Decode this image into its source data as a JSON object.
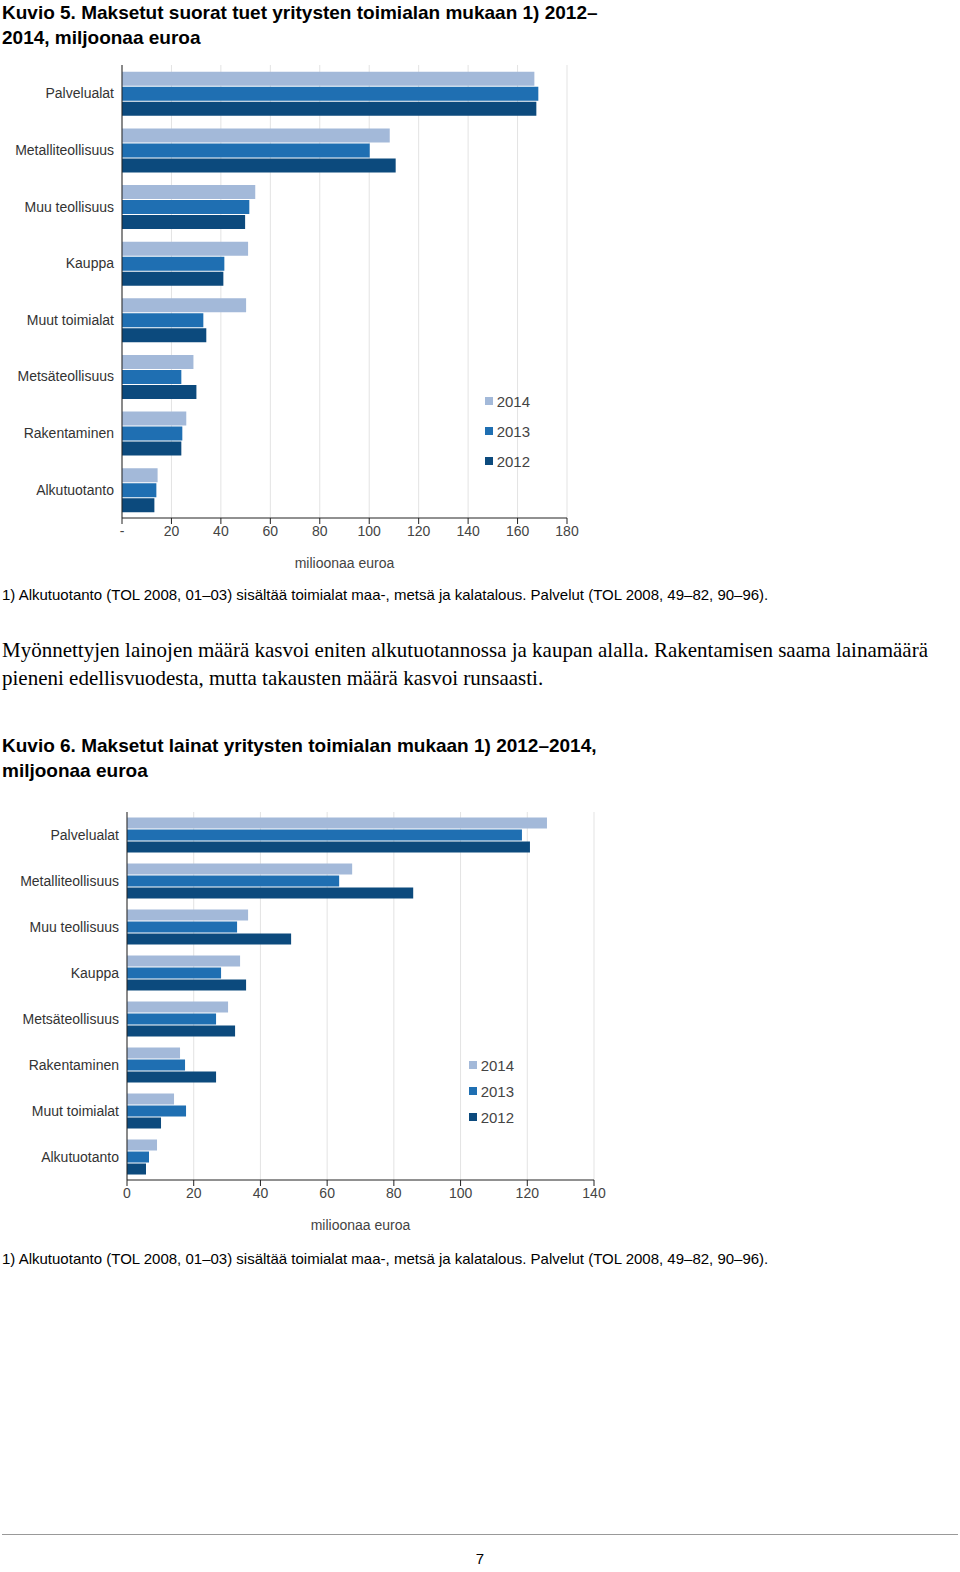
{
  "chart_data": [
    {
      "type": "bar",
      "title": "Kuvio 5. Maksetut suorat tuet yritysten toimialan mukaan 1) 2012–2014, miljoonaa euroa",
      "orientation": "horizontal",
      "xlabel": "miljoonaa euroa",
      "categories": [
        "Palvelualat",
        "Metalliteollisuus",
        "Muu teollisuus",
        "Kauppa",
        "Muut toimialat",
        "Metsäteollisuus",
        "Rakentaminen",
        "Alkutuotanto"
      ],
      "series": [
        {
          "name": "2014",
          "color": "#a3b9d9",
          "values": [
            166.8,
            108.3,
            53.9,
            51.0,
            50.2,
            28.9,
            26.0,
            14.4
          ]
        },
        {
          "name": "2013",
          "color": "#1f6fb2",
          "values": [
            168.4,
            100.2,
            51.5,
            41.4,
            32.9,
            24.0,
            24.4,
            13.9
          ]
        },
        {
          "name": "2012",
          "color": "#0c4a7d",
          "values": [
            167.6,
            110.7,
            49.8,
            41.0,
            34.1,
            30.1,
            24.0,
            13.1
          ]
        }
      ],
      "xlim": [
        0,
        180
      ],
      "xticks": [
        {
          "value": 0,
          "label": "-"
        },
        20,
        40,
        60,
        80,
        100,
        120,
        140,
        160,
        180
      ],
      "grid": true,
      "legend": "lower right",
      "annotations": [
        "1) Alkutuotanto (TOL 2008, 01–03) sisältää toimialat maa-, metsä ja kalatalous. Palvelut (TOL 2008, 49–82, 90–96)."
      ]
    },
    {
      "type": "bar",
      "title": "Kuvio 6. Maksetut lainat yritysten toimialan mukaan 1) 2012–2014, miljoonaa euroa",
      "orientation": "horizontal",
      "xlabel": "miljoonaa euroa",
      "categories": [
        "Palvelualat",
        "Metalliteollisuus",
        "Muu teollisuus",
        "Kauppa",
        "Metsäteollisuus",
        "Rakentaminen",
        "Muut toimialat",
        "Alkutuotanto"
      ],
      "series": [
        {
          "name": "2014",
          "color": "#a3b9d9",
          "values": [
            125.9,
            67.5,
            36.3,
            33.9,
            30.3,
            15.9,
            14.1,
            9.0
          ]
        },
        {
          "name": "2013",
          "color": "#1f6fb2",
          "values": [
            118.4,
            63.6,
            33.0,
            28.2,
            26.7,
            17.4,
            17.7,
            6.6
          ]
        },
        {
          "name": "2012",
          "color": "#0c4a7d",
          "values": [
            120.8,
            85.8,
            49.2,
            35.7,
            32.4,
            26.7,
            10.2,
            5.7
          ]
        }
      ],
      "xlim": [
        0,
        140
      ],
      "xticks": [
        0,
        20,
        40,
        60,
        80,
        100,
        120,
        140
      ],
      "grid": true,
      "legend": "lower right",
      "annotations": [
        "1) Alkutuotanto (TOL 2008, 01–03) sisältää toimialat maa-, metsä ja kalatalous. Palvelut (TOL 2008, 49–82, 90–96)."
      ]
    }
  ],
  "paragraph": "Myönnettyjen lainojen määrä kasvoi eniten alkutuotannossa ja kaupan alalla. Rakentamisen saama lainamäärä pieneni edellisvuodesta, mutta takausten määrä kasvoi runsaasti.",
  "page_number": 7
}
